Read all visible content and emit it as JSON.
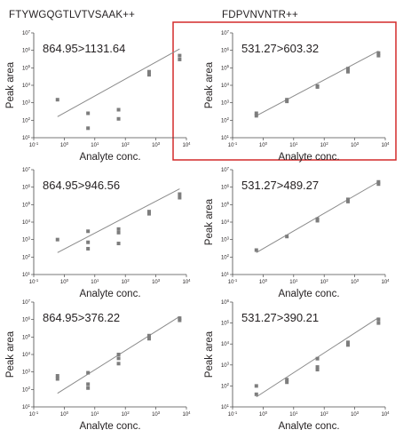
{
  "figure": {
    "column_titles": [
      "FTYWGQGTLVTVSAAK++",
      "FDPVNVNTR++"
    ],
    "highlight_color": "#d32a2a"
  },
  "chart_data": [
    {
      "type": "scatter",
      "column": 0,
      "row": 0,
      "transition": "864.95>1131.64",
      "xlabel": "Analyte conc.",
      "ylabel": "Peak area",
      "xscale": "log",
      "yscale": "log",
      "xlim": [
        0.1,
        10000
      ],
      "ylim": [
        10,
        10000000
      ],
      "xticks": [
        "10-1",
        "100",
        "101",
        "102",
        "103",
        "104"
      ],
      "yticks": [
        "101",
        "102",
        "103",
        "104",
        "105",
        "106",
        "107"
      ],
      "points": [
        [
          0.6,
          1500
        ],
        [
          6,
          250
        ],
        [
          6,
          35
        ],
        [
          60,
          400
        ],
        [
          60,
          120
        ],
        [
          600,
          60000
        ],
        [
          600,
          40000
        ],
        [
          6000,
          500000
        ],
        [
          6000,
          300000
        ]
      ],
      "fit": [
        [
          0.6,
          160
        ],
        [
          6000,
          1200000
        ]
      ],
      "highlighted": false
    },
    {
      "type": "scatter",
      "column": 1,
      "row": 0,
      "transition": "531.27>603.32",
      "xlabel": "Analyte conc.",
      "ylabel": "Peak area",
      "xscale": "log",
      "yscale": "log",
      "xlim": [
        0.1,
        10000
      ],
      "ylim": [
        10,
        10000000
      ],
      "xticks": [
        "10-1",
        "100",
        "101",
        "102",
        "103",
        "104"
      ],
      "yticks": [
        "101",
        "102",
        "103",
        "104",
        "105",
        "106",
        "107"
      ],
      "points": [
        [
          0.6,
          250
        ],
        [
          0.6,
          180
        ],
        [
          6,
          1500
        ],
        [
          6,
          1200
        ],
        [
          60,
          9000
        ],
        [
          60,
          8000
        ],
        [
          600,
          90000
        ],
        [
          600,
          60000
        ],
        [
          6000,
          700000
        ],
        [
          6000,
          500000
        ]
      ],
      "fit": [
        [
          0.6,
          180
        ],
        [
          6000,
          900000
        ]
      ],
      "highlighted": true
    },
    {
      "type": "scatter",
      "column": 0,
      "row": 1,
      "transition": "864.95>946.56",
      "xlabel": "Analyte conc.",
      "ylabel": "",
      "xscale": "log",
      "yscale": "log",
      "xlim": [
        0.1,
        10000
      ],
      "ylim": [
        10,
        10000000
      ],
      "xticks": [
        "10-1",
        "100",
        "101",
        "102",
        "103",
        "104"
      ],
      "yticks": [
        "101",
        "102",
        "103",
        "104",
        "105",
        "106",
        "107"
      ],
      "points": [
        [
          0.6,
          1000
        ],
        [
          6,
          3000
        ],
        [
          6,
          700
        ],
        [
          6,
          300
        ],
        [
          60,
          4000
        ],
        [
          60,
          2500
        ],
        [
          60,
          600
        ],
        [
          600,
          40000
        ],
        [
          600,
          30000
        ],
        [
          6000,
          400000
        ],
        [
          6000,
          250000
        ]
      ],
      "fit": [
        [
          0.6,
          180
        ],
        [
          6000,
          800000
        ]
      ],
      "highlighted": false
    },
    {
      "type": "scatter",
      "column": 1,
      "row": 1,
      "transition": "531.27>489.27",
      "xlabel": "Analyte conc.",
      "ylabel": "Peak area",
      "xscale": "log",
      "yscale": "log",
      "xlim": [
        0.1,
        10000
      ],
      "ylim": [
        10,
        10000000
      ],
      "xticks": [
        "10-1",
        "100",
        "101",
        "102",
        "103",
        "104"
      ],
      "yticks": [
        "101",
        "102",
        "103",
        "104",
        "105",
        "106",
        "107"
      ],
      "points": [
        [
          0.6,
          250
        ],
        [
          6,
          1500
        ],
        [
          60,
          15000
        ],
        [
          60,
          12000
        ],
        [
          600,
          200000
        ],
        [
          600,
          150000
        ],
        [
          6000,
          2000000
        ],
        [
          6000,
          1500000
        ]
      ],
      "fit": [
        [
          0.6,
          180
        ],
        [
          6000,
          2000000
        ]
      ],
      "highlighted": false
    },
    {
      "type": "scatter",
      "column": 0,
      "row": 2,
      "transition": "864.95>376.22",
      "xlabel": "Analyte conc.",
      "ylabel": "Peak area",
      "xscale": "log",
      "yscale": "log",
      "xlim": [
        0.1,
        10000
      ],
      "ylim": [
        10,
        10000000
      ],
      "xticks": [
        "10-1",
        "100",
        "101",
        "102",
        "103",
        "104"
      ],
      "yticks": [
        "101",
        "102",
        "103",
        "104",
        "105",
        "106",
        "107"
      ],
      "points": [
        [
          0.6,
          600
        ],
        [
          0.6,
          400
        ],
        [
          6,
          900
        ],
        [
          6,
          200
        ],
        [
          6,
          120
        ],
        [
          60,
          10000
        ],
        [
          60,
          6000
        ],
        [
          60,
          3000
        ],
        [
          600,
          120000
        ],
        [
          600,
          80000
        ],
        [
          6000,
          1200000
        ],
        [
          6000,
          900000
        ]
      ],
      "fit": [
        [
          0.6,
          60
        ],
        [
          6000,
          1500000
        ]
      ],
      "highlighted": false
    },
    {
      "type": "scatter",
      "column": 1,
      "row": 2,
      "transition": "531.27>390.21",
      "xlabel": "Analyte conc.",
      "ylabel": "Peak area",
      "xscale": "log",
      "yscale": "log",
      "xlim": [
        0.1,
        10000
      ],
      "ylim": [
        10,
        1000000
      ],
      "xticks": [
        "10-1",
        "100",
        "101",
        "102",
        "103",
        "104"
      ],
      "yticks": [
        "101",
        "102",
        "103",
        "104",
        "105",
        "106"
      ],
      "points": [
        [
          0.6,
          100
        ],
        [
          0.6,
          40
        ],
        [
          6,
          200
        ],
        [
          6,
          150
        ],
        [
          60,
          2000
        ],
        [
          60,
          800
        ],
        [
          60,
          600
        ],
        [
          600,
          12000
        ],
        [
          600,
          9000
        ],
        [
          6000,
          150000
        ],
        [
          6000,
          100000
        ]
      ],
      "fit": [
        [
          0.6,
          30
        ],
        [
          6000,
          180000
        ]
      ],
      "highlighted": false
    }
  ]
}
